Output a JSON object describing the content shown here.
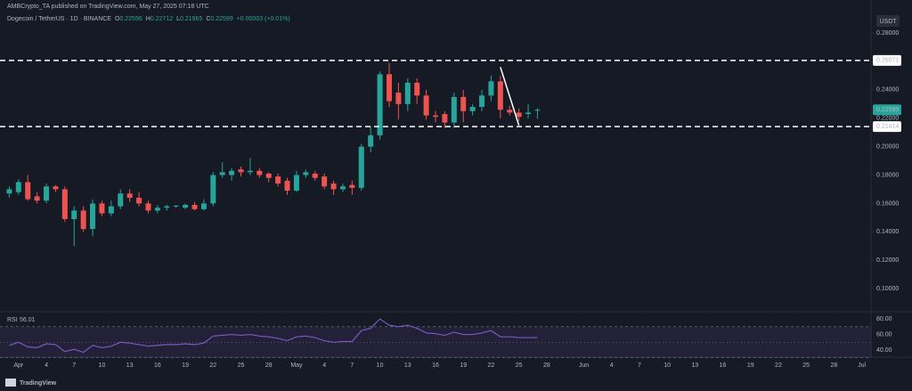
{
  "header": {
    "published": "AMBCrypto_TA published on TradingView.com, May 27, 2025 07:18 UTC",
    "symbol": "Dogecoin / TetherUS · 1D · BINANCE",
    "ohlc_labels": [
      "O",
      "H",
      "L",
      "C"
    ],
    "change": "+0.00003 (+0.01%)"
  },
  "footer": "TradingView",
  "chart_data": [
    {
      "type": "candlestick",
      "unit": "USDT",
      "x": [
        "2025-03-31",
        "2025-04-01",
        "2025-04-02",
        "2025-04-03",
        "2025-04-04",
        "2025-04-05",
        "2025-04-06",
        "2025-04-07",
        "2025-04-08",
        "2025-04-09",
        "2025-04-10",
        "2025-04-11",
        "2025-04-12",
        "2025-04-13",
        "2025-04-14",
        "2025-04-15",
        "2025-04-16",
        "2025-04-17",
        "2025-04-18",
        "2025-04-19",
        "2025-04-20",
        "2025-04-21",
        "2025-04-22",
        "2025-04-23",
        "2025-04-24",
        "2025-04-25",
        "2025-04-26",
        "2025-04-27",
        "2025-04-28",
        "2025-04-29",
        "2025-04-30",
        "2025-05-01",
        "2025-05-02",
        "2025-05-03",
        "2025-05-04",
        "2025-05-05",
        "2025-05-06",
        "2025-05-07",
        "2025-05-08",
        "2025-05-09",
        "2025-05-10",
        "2025-05-11",
        "2025-05-12",
        "2025-05-13",
        "2025-05-14",
        "2025-05-15",
        "2025-05-16",
        "2025-05-17",
        "2025-05-18",
        "2025-05-19",
        "2025-05-20",
        "2025-05-21",
        "2025-05-22",
        "2025-05-23",
        "2025-05-24",
        "2025-05-25",
        "2025-05-26",
        "2025-05-27"
      ],
      "open": [
        0.167,
        0.168,
        0.175,
        0.165,
        0.162,
        0.172,
        0.17,
        0.149,
        0.155,
        0.142,
        0.16,
        0.153,
        0.158,
        0.167,
        0.164,
        0.16,
        0.155,
        0.157,
        0.158,
        0.157,
        0.159,
        0.156,
        0.16,
        0.18,
        0.18,
        0.184,
        0.182,
        0.183,
        0.181,
        0.179,
        0.176,
        0.169,
        0.18,
        0.181,
        0.179,
        0.174,
        0.17,
        0.173,
        0.171,
        0.2,
        0.208,
        0.251,
        0.238,
        0.23,
        0.245,
        0.236,
        0.222,
        0.223,
        0.217,
        0.235,
        0.225,
        0.228,
        0.236,
        0.246,
        0.226,
        0.224,
        0.223,
        0.22596
      ],
      "high": [
        0.172,
        0.177,
        0.18,
        0.168,
        0.174,
        0.173,
        0.172,
        0.158,
        0.158,
        0.163,
        0.162,
        0.162,
        0.17,
        0.17,
        0.168,
        0.162,
        0.159,
        0.159,
        0.159,
        0.16,
        0.161,
        0.163,
        0.182,
        0.189,
        0.185,
        0.186,
        0.192,
        0.185,
        0.182,
        0.181,
        0.178,
        0.183,
        0.184,
        0.183,
        0.181,
        0.176,
        0.174,
        0.176,
        0.202,
        0.214,
        0.253,
        0.259,
        0.245,
        0.248,
        0.248,
        0.24,
        0.225,
        0.225,
        0.238,
        0.24,
        0.23,
        0.24,
        0.25,
        0.25,
        0.229,
        0.227,
        0.23,
        0.22712
      ],
      "low": [
        0.164,
        0.166,
        0.162,
        0.16,
        0.16,
        0.168,
        0.147,
        0.13,
        0.14,
        0.137,
        0.151,
        0.151,
        0.156,
        0.161,
        0.158,
        0.153,
        0.153,
        0.155,
        0.157,
        0.156,
        0.155,
        0.155,
        0.158,
        0.178,
        0.176,
        0.179,
        0.18,
        0.178,
        0.175,
        0.172,
        0.166,
        0.168,
        0.178,
        0.176,
        0.17,
        0.166,
        0.168,
        0.166,
        0.169,
        0.196,
        0.205,
        0.228,
        0.219,
        0.225,
        0.23,
        0.219,
        0.217,
        0.213,
        0.213,
        0.217,
        0.222,
        0.225,
        0.232,
        0.22,
        0.222,
        0.218,
        0.22,
        0.21965
      ],
      "close": [
        0.17,
        0.175,
        0.163,
        0.162,
        0.172,
        0.17,
        0.149,
        0.155,
        0.142,
        0.16,
        0.153,
        0.158,
        0.167,
        0.164,
        0.16,
        0.155,
        0.157,
        0.158,
        0.1585,
        0.159,
        0.156,
        0.16,
        0.18,
        0.182,
        0.183,
        0.182,
        0.183,
        0.18,
        0.178,
        0.174,
        0.169,
        0.18,
        0.182,
        0.178,
        0.172,
        0.17,
        0.172,
        0.171,
        0.2,
        0.208,
        0.251,
        0.232,
        0.23,
        0.245,
        0.236,
        0.222,
        0.221,
        0.217,
        0.235,
        0.225,
        0.228,
        0.236,
        0.246,
        0.226,
        0.224,
        0.221,
        0.224,
        0.22599
      ],
      "up_color": "#26a69a",
      "down_color": "#ef5350",
      "xlim": [
        "2025-03-30",
        "2025-07-02"
      ],
      "xticks": [
        {
          "value": "2025-04-01",
          "label": "Apr"
        },
        {
          "value": "2025-04-04",
          "label": "4"
        },
        {
          "value": "2025-04-07",
          "label": "7"
        },
        {
          "value": "2025-04-10",
          "label": "10"
        },
        {
          "value": "2025-04-13",
          "label": "13"
        },
        {
          "value": "2025-04-16",
          "label": "16"
        },
        {
          "value": "2025-04-19",
          "label": "19"
        },
        {
          "value": "2025-04-22",
          "label": "22"
        },
        {
          "value": "2025-04-25",
          "label": "25"
        },
        {
          "value": "2025-04-28",
          "label": "28"
        },
        {
          "value": "2025-05-01",
          "label": "May"
        },
        {
          "value": "2025-05-04",
          "label": "4"
        },
        {
          "value": "2025-05-07",
          "label": "7"
        },
        {
          "value": "2025-05-10",
          "label": "10"
        },
        {
          "value": "2025-05-13",
          "label": "13"
        },
        {
          "value": "2025-05-16",
          "label": "16"
        },
        {
          "value": "2025-05-19",
          "label": "19"
        },
        {
          "value": "2025-05-22",
          "label": "22"
        },
        {
          "value": "2025-05-25",
          "label": "25"
        },
        {
          "value": "2025-05-28",
          "label": "28"
        },
        {
          "value": "2025-06-01",
          "label": "Jun"
        },
        {
          "value": "2025-06-04",
          "label": "4"
        },
        {
          "value": "2025-06-07",
          "label": "7"
        },
        {
          "value": "2025-06-10",
          "label": "10"
        },
        {
          "value": "2025-06-13",
          "label": "13"
        },
        {
          "value": "2025-06-16",
          "label": "16"
        },
        {
          "value": "2025-06-19",
          "label": "19"
        },
        {
          "value": "2025-06-22",
          "label": "22"
        },
        {
          "value": "2025-06-25",
          "label": "25"
        },
        {
          "value": "2025-06-28",
          "label": "28"
        },
        {
          "value": "2025-07-01",
          "label": "Jul"
        }
      ],
      "ylim": [
        0.085,
        0.297
      ],
      "yticks": [
        {
          "value": 0.1,
          "label": "0.10000"
        },
        {
          "value": 0.12,
          "label": "0.12000"
        },
        {
          "value": 0.14,
          "label": "0.14000"
        },
        {
          "value": 0.16,
          "label": "0.16000"
        },
        {
          "value": 0.18,
          "label": "0.18000"
        },
        {
          "value": 0.2,
          "label": "0.20000"
        },
        {
          "value": 0.22,
          "label": "0.22000"
        },
        {
          "value": 0.24,
          "label": "0.24000"
        },
        {
          "value": 0.28,
          "label": "0.28000"
        }
      ],
      "hlines": [
        0.26071,
        0.21414
      ],
      "trendline": {
        "x": [
          "2025-05-23",
          "2025-05-25"
        ],
        "y": [
          0.256,
          0.215
        ],
        "color": "#ffffff"
      }
    },
    {
      "type": "line",
      "title": "RSI",
      "color": "#7e57c2",
      "values": [
        46,
        50,
        44,
        43,
        48,
        47,
        38,
        41,
        37,
        46,
        43,
        45,
        50,
        49,
        47,
        45,
        46,
        47,
        47,
        48,
        47,
        49,
        58,
        59,
        60,
        59,
        60,
        58,
        57,
        55,
        52,
        57,
        58,
        56,
        52,
        50,
        51,
        51,
        65,
        68,
        80,
        72,
        70,
        72,
        68,
        62,
        61,
        59,
        63,
        60,
        60,
        62,
        65,
        57,
        57,
        56,
        56,
        56.01
      ],
      "ylim": [
        32,
        87
      ],
      "yticks": [
        {
          "value": 40,
          "label": "40.00"
        },
        {
          "value": 60,
          "label": "60.00"
        },
        {
          "value": 80,
          "label": "80.00"
        }
      ],
      "band": [
        30,
        70
      ],
      "midline": 50
    }
  ]
}
